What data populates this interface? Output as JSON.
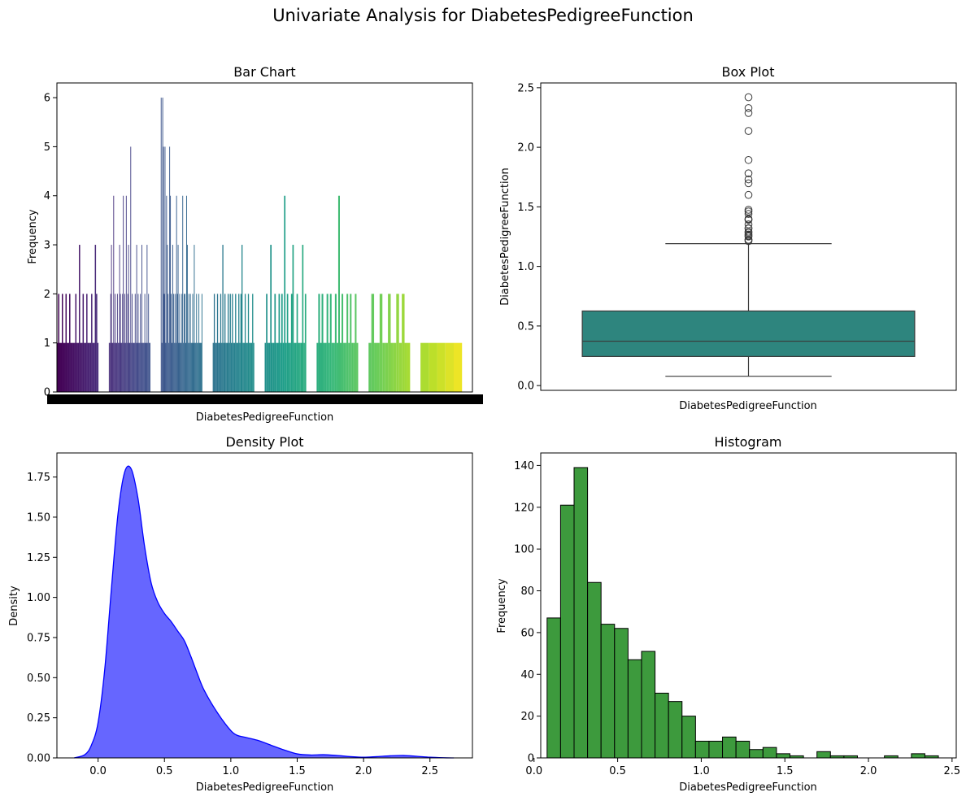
{
  "suptitle": "Univariate Analysis for DiabetesPedigreeFunction",
  "chart_data": [
    {
      "type": "bar",
      "title": "Bar Chart",
      "xlabel": "DiabetesPedigreeFunction",
      "ylabel": "Frequency",
      "ylim": [
        0,
        6.3
      ],
      "yticks": [
        0,
        1,
        2,
        3,
        4,
        5,
        6
      ],
      "note_x": "~517 unique values; tick labels overlap into a solid band",
      "palette": "viridis",
      "category_count": 517,
      "counts_sample_by_group": [
        {
          "group": 1,
          "counts": [
            1,
            2,
            1,
            1,
            2,
            1,
            1,
            2,
            1,
            1,
            2,
            1,
            1,
            1,
            1,
            2,
            1,
            1,
            3,
            1,
            1,
            2,
            1,
            1,
            2,
            1,
            1,
            1,
            2,
            1,
            1,
            3,
            2,
            1
          ]
        },
        {
          "group": 2,
          "counts": [
            1,
            1,
            2,
            3,
            1,
            1,
            4,
            1,
            2,
            1,
            1,
            2,
            1,
            1,
            3,
            2,
            1,
            1,
            2,
            4,
            1,
            2,
            1,
            4,
            1,
            2,
            3,
            1,
            1,
            5,
            1,
            2,
            1,
            1,
            1,
            2,
            1,
            3,
            1,
            2,
            1,
            1,
            2,
            1,
            3,
            1,
            1,
            1,
            2,
            1,
            1,
            3,
            1,
            2,
            1,
            1
          ]
        },
        {
          "group": 3,
          "counts": [
            6,
            1,
            6,
            5,
            2,
            5,
            1,
            4,
            3,
            2,
            1,
            5,
            4,
            2,
            1,
            3,
            2,
            1,
            2,
            1,
            4,
            2,
            3,
            1,
            2,
            1,
            1,
            2,
            4,
            1,
            2,
            2,
            1,
            4,
            3,
            1,
            2,
            1,
            2,
            1,
            1,
            2,
            1,
            3,
            1,
            1,
            2,
            1,
            1,
            2,
            1,
            1,
            1,
            2
          ]
        },
        {
          "group": 4,
          "counts": [
            1,
            2,
            1,
            1,
            2,
            1,
            1,
            2,
            1,
            3,
            1,
            2,
            1,
            1,
            2,
            1,
            2,
            1,
            2,
            1,
            1,
            2,
            1,
            1,
            2,
            1,
            2,
            3,
            1,
            1,
            2,
            1,
            1,
            2,
            1,
            1,
            1,
            2,
            1
          ]
        },
        {
          "group": 5,
          "counts": [
            1,
            2,
            1,
            1,
            3,
            1,
            1,
            2,
            1,
            1,
            2,
            1,
            2,
            1,
            4,
            1,
            2,
            1,
            1,
            2,
            3,
            1,
            1,
            2,
            1,
            1,
            1,
            3,
            1,
            2
          ]
        },
        {
          "group": 6,
          "counts": [
            1,
            2,
            1,
            2,
            1,
            1,
            2,
            1,
            2,
            1,
            1,
            2,
            1,
            4,
            1,
            2,
            1,
            1,
            2,
            1,
            2,
            1,
            1,
            2,
            1
          ]
        },
        {
          "group": 7,
          "counts": [
            1,
            2,
            1,
            1,
            2,
            1,
            1,
            2,
            1,
            1,
            2,
            1,
            2,
            1,
            1
          ]
        },
        {
          "group": 8,
          "counts": [
            1,
            1,
            1,
            1,
            1
          ]
        }
      ]
    },
    {
      "type": "box",
      "title": "Box Plot",
      "xlabel": "DiabetesPedigreeFunction",
      "ylabel": "DiabetesPedigreeFunction",
      "ylim": [
        -0.04,
        2.54
      ],
      "yticks": [
        0.0,
        0.5,
        1.0,
        1.5,
        2.0,
        2.5
      ],
      "min_whisker": 0.078,
      "q1": 0.244,
      "median": 0.3725,
      "q3": 0.626,
      "max_whisker": 1.191,
      "outliers": [
        1.213,
        1.222,
        1.224,
        1.251,
        1.258,
        1.268,
        1.282,
        1.292,
        1.318,
        1.321,
        1.353,
        1.391,
        1.394,
        1.4,
        1.441,
        1.461,
        1.476,
        1.6,
        1.698,
        1.731,
        1.781,
        1.893,
        2.137,
        2.288,
        2.329,
        2.42
      ],
      "color": "#2e857e"
    },
    {
      "type": "area",
      "title": "Density Plot",
      "xlabel": "DiabetesPedigreeFunction",
      "ylabel": "Density",
      "xlim": [
        -0.31,
        2.82
      ],
      "ylim": [
        0,
        1.9
      ],
      "xticks": [
        0.0,
        0.5,
        1.0,
        1.5,
        2.0,
        2.5
      ],
      "yticks": [
        0.0,
        0.25,
        0.5,
        0.75,
        1.0,
        1.25,
        1.5,
        1.75
      ],
      "x": [
        -0.18,
        -0.1,
        -0.05,
        0.0,
        0.05,
        0.1,
        0.15,
        0.2,
        0.25,
        0.3,
        0.35,
        0.4,
        0.45,
        0.5,
        0.55,
        0.6,
        0.65,
        0.7,
        0.75,
        0.8,
        0.9,
        1.0,
        1.05,
        1.1,
        1.2,
        1.3,
        1.4,
        1.5,
        1.6,
        1.7,
        1.8,
        1.9,
        2.0,
        2.1,
        2.2,
        2.3,
        2.4,
        2.5,
        2.6,
        2.68
      ],
      "y": [
        0.0,
        0.02,
        0.08,
        0.22,
        0.55,
        1.05,
        1.52,
        1.78,
        1.8,
        1.62,
        1.32,
        1.09,
        0.97,
        0.9,
        0.85,
        0.79,
        0.73,
        0.63,
        0.52,
        0.42,
        0.28,
        0.17,
        0.14,
        0.13,
        0.11,
        0.08,
        0.05,
        0.025,
        0.018,
        0.02,
        0.015,
        0.008,
        0.004,
        0.008,
        0.013,
        0.015,
        0.01,
        0.004,
        0.001,
        0.0
      ],
      "fill_color": "#6666ff",
      "line_color": "#0000ff"
    },
    {
      "type": "bar",
      "title": "Histogram",
      "xlabel": "DiabetesPedigreeFunction",
      "ylabel": "Frequency",
      "xlim": [
        0.04,
        2.525
      ],
      "ylim": [
        0,
        146
      ],
      "xticks": [
        0.0,
        0.5,
        1.0,
        1.5,
        2.0,
        2.5
      ],
      "yticks": [
        0,
        20,
        40,
        60,
        80,
        100,
        120,
        140
      ],
      "bin_start": 0.078,
      "bin_width": 0.0807,
      "values": [
        67,
        121,
        139,
        84,
        64,
        62,
        47,
        51,
        31,
        27,
        20,
        8,
        8,
        10,
        8,
        4,
        5,
        2,
        1,
        0,
        3,
        1,
        1,
        0,
        0,
        1,
        0,
        2,
        1
      ],
      "color": "#3d9a3d"
    }
  ]
}
